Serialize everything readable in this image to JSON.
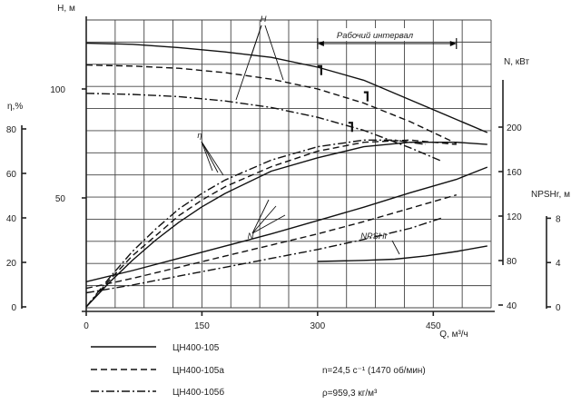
{
  "chart_data": {
    "type": "line",
    "x_axis": {
      "label": "Q, м³/ч",
      "range": [
        0,
        525
      ],
      "ticks": [
        "0",
        "150",
        "300",
        "450"
      ],
      "tick_values": [
        0,
        150,
        300,
        450
      ]
    },
    "axes": {
      "H": {
        "label": "Н, м",
        "ticks": [
          "50",
          "100"
        ],
        "tick_values": [
          50,
          100
        ]
      },
      "eta": {
        "label": "η,%",
        "ticks": [
          "0",
          "20",
          "40",
          "60",
          "80"
        ],
        "tick_values": [
          0,
          20,
          40,
          60,
          80
        ]
      },
      "N": {
        "label": "N, кВт",
        "ticks": [
          "40",
          "80",
          "120",
          "160",
          "200"
        ],
        "tick_values": [
          40,
          80,
          120,
          160,
          200
        ]
      },
      "NPSH": {
        "label": "NPSHr, м",
        "ticks": [
          "0",
          "4",
          "8"
        ],
        "tick_values": [
          0,
          4,
          8
        ]
      }
    },
    "grid": true,
    "legend": {
      "placement": "bottom-left",
      "entries": [
        {
          "name": "ЦН400-105",
          "style": "solid"
        },
        {
          "name": "ЦН400-105а",
          "style": "dashed"
        },
        {
          "name": "ЦН400-105б",
          "style": "dashdot"
        }
      ]
    },
    "annotations": {
      "curve_H": "H",
      "curve_eta": "η",
      "curve_N": "N",
      "curve_NPSH": "NPSHr",
      "work_range": "Рабочий интервал",
      "speed": "n=24,5 с⁻¹ (1470 об/мин)",
      "density": "ρ=959,3 кг/м³"
    },
    "work_range_Q": [
      300,
      480
    ],
    "series": [
      {
        "name": "ЦН400-105",
        "quantity": "H",
        "style": "solid",
        "x": [
          0,
          60,
          120,
          180,
          240,
          300,
          360,
          420,
          480,
          520
        ],
        "y": [
          121,
          120.5,
          119,
          117,
          114.5,
          110,
          104,
          95,
          86,
          80
        ]
      },
      {
        "name": "ЦН400-105а",
        "quantity": "H",
        "style": "dashed",
        "x": [
          0,
          60,
          120,
          180,
          240,
          300,
          360,
          420,
          480
        ],
        "y": [
          111,
          110.5,
          109.5,
          107.5,
          104.5,
          100,
          93.5,
          85,
          75
        ]
      },
      {
        "name": "ЦН400-105б",
        "quantity": "H",
        "style": "dashdot",
        "x": [
          0,
          60,
          120,
          180,
          240,
          300,
          360,
          420,
          460
        ],
        "y": [
          98,
          97.5,
          96.5,
          94.5,
          91.5,
          87,
          81,
          73,
          67
        ]
      },
      {
        "name": "ЦН400-105",
        "quantity": "eta",
        "style": "solid",
        "x": [
          0,
          30,
          60,
          90,
          120,
          150,
          180,
          240,
          300,
          360,
          420,
          480,
          520
        ],
        "y": [
          0,
          11,
          21,
          30,
          38,
          45,
          51,
          61,
          67,
          72,
          74,
          74,
          73
        ]
      },
      {
        "name": "ЦН400-105а",
        "quantity": "eta",
        "style": "dashed",
        "x": [
          0,
          30,
          60,
          90,
          120,
          150,
          180,
          240,
          300,
          360,
          420,
          480
        ],
        "y": [
          0,
          12,
          23,
          32,
          41,
          48,
          54,
          63,
          70,
          74,
          75,
          73
        ]
      },
      {
        "name": "ЦН400-105б",
        "quantity": "eta",
        "style": "dashdot",
        "x": [
          0,
          30,
          60,
          90,
          120,
          150,
          180,
          240,
          300,
          360,
          400,
          440
        ],
        "y": [
          0,
          13,
          25,
          35,
          44,
          51,
          57,
          66,
          72,
          75,
          75,
          73
        ]
      },
      {
        "name": "ЦН400-105",
        "quantity": "N",
        "style": "solid",
        "x": [
          0,
          60,
          120,
          180,
          240,
          300,
          360,
          420,
          480,
          520
        ],
        "y": [
          61,
          71,
          82,
          93,
          104,
          116,
          128,
          141,
          153,
          164
        ]
      },
      {
        "name": "ЦН400-105а",
        "quantity": "N",
        "style": "dashed",
        "x": [
          0,
          60,
          120,
          180,
          240,
          300,
          360,
          420,
          480
        ],
        "y": [
          55,
          64,
          74,
          84,
          94,
          104,
          115,
          127,
          139
        ]
      },
      {
        "name": "ЦН400-105б",
        "quantity": "N",
        "style": "dashdot",
        "x": [
          0,
          60,
          120,
          180,
          240,
          300,
          360,
          420,
          460
        ],
        "y": [
          51,
          58,
          66,
          74,
          82,
          90,
          99,
          109,
          118
        ]
      },
      {
        "name": "ЦН400-105",
        "quantity": "NPSH",
        "style": "solid",
        "x": [
          300,
          360,
          400,
          440,
          480,
          520
        ],
        "y": [
          4.1,
          4.2,
          4.3,
          4.6,
          5.0,
          5.5
        ]
      }
    ]
  }
}
